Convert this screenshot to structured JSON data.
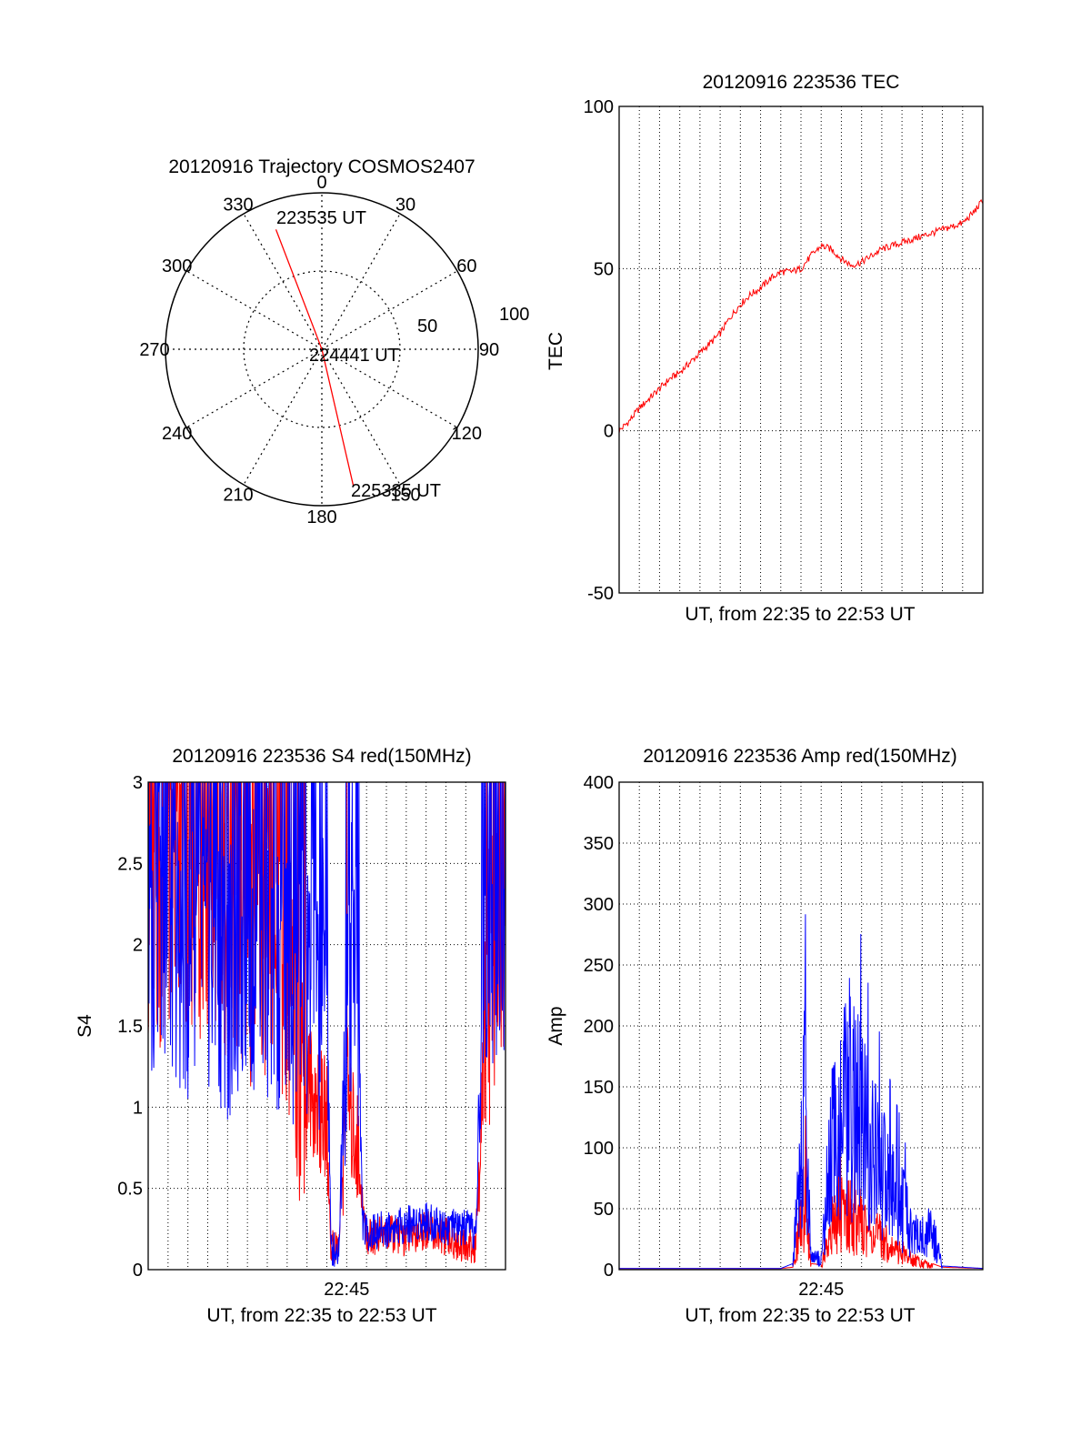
{
  "colors": {
    "series_a": "#ff0000",
    "series_b": "#0000ff",
    "axis": "#000000",
    "grid": "#000000"
  },
  "chart_data": [
    {
      "type": "polar",
      "title": "20120916 Trajectory COSMOS2407",
      "azimuth_labels": [
        "0",
        "30",
        "60",
        "90",
        "120",
        "150",
        "180",
        "210",
        "240",
        "270",
        "300",
        "330"
      ],
      "radial_labels": [
        "50",
        "100"
      ],
      "grid": true,
      "trajectory": [
        {
          "azimuth_deg": 339,
          "radius": 82,
          "time_label": "223535 UT"
        },
        {
          "azimuth_deg": 0,
          "radius": 0,
          "time_label": "224441 UT"
        },
        {
          "azimuth_deg": 167,
          "radius": 90,
          "time_label": "225335 UT"
        }
      ]
    },
    {
      "type": "line",
      "title": "20120916 223536 TEC",
      "xlabel": "UT, from 22:35 to 22:53 UT",
      "ylabel": "TEC",
      "x_range_min": [
        0,
        18
      ],
      "ylim": [
        -50,
        100
      ],
      "yticks": [
        "-50",
        "0",
        "50",
        "100"
      ],
      "grid": true,
      "series": [
        {
          "x": [
            0,
            0.5,
            1,
            1.5,
            2,
            2.5,
            3,
            3.5,
            4,
            4.5,
            5,
            5.5,
            6,
            6.5,
            7,
            7.5,
            8,
            8.5,
            9,
            9.5,
            10,
            10.5,
            11,
            11.5,
            12,
            12.5,
            13,
            13.5,
            14,
            14.5,
            15,
            15.5,
            16,
            16.5,
            17,
            17.5,
            18
          ],
          "values": [
            0,
            3,
            7,
            10,
            13,
            16,
            18,
            21,
            24,
            27,
            30,
            35,
            39,
            42,
            44,
            47,
            49,
            49,
            50,
            54,
            57,
            56,
            53,
            51,
            52,
            54,
            56,
            57,
            58,
            59,
            60,
            61,
            62,
            63,
            64,
            67,
            71
          ]
        }
      ]
    },
    {
      "type": "line",
      "title": "20120916 223536 S4 red(150MHz)",
      "xlabel": "UT, from 22:35 to 22:53 UT",
      "ylabel": "S4",
      "x_range_min": [
        0,
        18
      ],
      "xticks": [
        {
          "x": 10,
          "label": "22:45"
        }
      ],
      "ylim": [
        0,
        3
      ],
      "yticks": [
        "0",
        "0.5",
        "1",
        "1.5",
        "2",
        "2.5",
        "3"
      ],
      "grid": true,
      "series": [
        {
          "x": [
            0,
            1,
            2,
            3,
            4,
            5,
            6,
            7,
            7.5,
            8,
            8.5,
            9,
            9.2,
            9.6,
            10,
            10.2,
            10.5,
            10.8,
            11,
            12,
            13,
            14,
            15,
            16,
            16.5,
            17,
            17.5,
            18
          ],
          "values": [
            2.3,
            2.2,
            2.4,
            2.1,
            2.2,
            2.0,
            2.1,
            1.9,
            1.3,
            1.2,
            1.0,
            0.9,
            0.15,
            0.14,
            1.2,
            0.9,
            0.8,
            0.4,
            0.2,
            0.22,
            0.2,
            0.25,
            0.2,
            0.15,
            0.15,
            1.5,
            2.1,
            2.0
          ]
        },
        {
          "x": [
            0,
            1,
            2,
            3,
            4,
            5,
            6,
            7,
            7.5,
            8,
            8.5,
            9,
            9.2,
            9.6,
            10,
            10.2,
            10.5,
            10.8,
            11,
            12,
            13,
            14,
            15,
            16,
            16.5,
            17,
            17.5,
            18
          ],
          "values": [
            2.0,
            2.1,
            1.9,
            2.0,
            1.8,
            2.0,
            1.9,
            1.8,
            1.7,
            1.8,
            1.6,
            1.9,
            0.13,
            0.12,
            1.8,
            1.9,
            2.0,
            0.3,
            0.22,
            0.25,
            0.28,
            0.3,
            0.27,
            0.25,
            0.22,
            2.0,
            2.2,
            2.0
          ]
        }
      ]
    },
    {
      "type": "line",
      "title": "20120916 223536 Amp red(150MHz)",
      "xlabel": "UT, from 22:35 to 22:53 UT",
      "ylabel": "Amp",
      "x_range_min": [
        0,
        18
      ],
      "xticks": [
        {
          "x": 10,
          "label": "22:45"
        }
      ],
      "ylim": [
        0,
        400
      ],
      "yticks": [
        "0",
        "50",
        "100",
        "150",
        "200",
        "250",
        "300",
        "350",
        "400"
      ],
      "grid": true,
      "series": [
        {
          "x": [
            0,
            8,
            8.6,
            9,
            9.2,
            9.5,
            10,
            10.5,
            11,
            11.5,
            12,
            12.5,
            13,
            13.5,
            14,
            14.5,
            15,
            15.5,
            16,
            18
          ],
          "values": [
            1,
            1,
            2,
            70,
            100,
            5,
            4,
            60,
            80,
            75,
            65,
            50,
            45,
            30,
            25,
            15,
            10,
            5,
            2,
            1
          ]
        },
        {
          "x": [
            0,
            8,
            8.6,
            9,
            9.2,
            9.5,
            10,
            10.5,
            11,
            11.5,
            12,
            12.5,
            13,
            13.5,
            14,
            14.5,
            15,
            15.5,
            16,
            18
          ],
          "values": [
            1,
            1,
            5,
            180,
            230,
            20,
            15,
            170,
            210,
            250,
            200,
            160,
            140,
            110,
            90,
            50,
            45,
            55,
            3,
            1
          ]
        }
      ]
    }
  ]
}
